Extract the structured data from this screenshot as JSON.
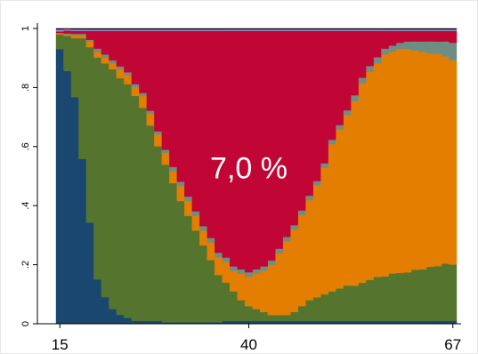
{
  "chart_data": {
    "type": "area",
    "stacking": "proportional",
    "step": true,
    "x": [
      15,
      16,
      17,
      18,
      19,
      20,
      21,
      22,
      23,
      24,
      25,
      26,
      27,
      28,
      29,
      30,
      31,
      32,
      33,
      34,
      35,
      36,
      37,
      38,
      39,
      40,
      41,
      42,
      43,
      44,
      45,
      46,
      47,
      48,
      49,
      50,
      51,
      52,
      53,
      54,
      55,
      56,
      57,
      58,
      59,
      60,
      61,
      62,
      63,
      64,
      65,
      66,
      67
    ],
    "series": [
      {
        "color": "#1a476f",
        "values": [
          0.93,
          0.86,
          0.77,
          0.56,
          0.34,
          0.15,
          0.09,
          0.05,
          0.03,
          0.02,
          0.01,
          0.01,
          0.01,
          0.01,
          0.005,
          0.005,
          0.005,
          0.005,
          0.005,
          0.005,
          0.005,
          0.005,
          0.01,
          0.01,
          0.01,
          0.01,
          0.01,
          0.01,
          0.01,
          0.01,
          0.01,
          0.01,
          0.01,
          0.01,
          0.01,
          0.01,
          0.01,
          0.01,
          0.01,
          0.01,
          0.01,
          0.01,
          0.01,
          0.01,
          0.01,
          0.01,
          0.01,
          0.01,
          0.01,
          0.01,
          0.01,
          0.01,
          0.01
        ]
      },
      {
        "color": "#55752f",
        "values": [
          0.05,
          0.12,
          0.2,
          0.41,
          0.59,
          0.75,
          0.79,
          0.81,
          0.8,
          0.79,
          0.76,
          0.72,
          0.66,
          0.59,
          0.53,
          0.47,
          0.41,
          0.36,
          0.31,
          0.26,
          0.21,
          0.16,
          0.13,
          0.1,
          0.07,
          0.05,
          0.04,
          0.03,
          0.02,
          0.02,
          0.02,
          0.03,
          0.05,
          0.07,
          0.08,
          0.09,
          0.1,
          0.11,
          0.12,
          0.12,
          0.13,
          0.14,
          0.15,
          0.15,
          0.16,
          0.16,
          0.16,
          0.17,
          0.17,
          0.18,
          0.18,
          0.19,
          0.19
        ]
      },
      {
        "color": "#e37e00",
        "values": [
          0.003,
          0.005,
          0.01,
          0.01,
          0.02,
          0.02,
          0.02,
          0.02,
          0.03,
          0.03,
          0.03,
          0.04,
          0.04,
          0.04,
          0.04,
          0.04,
          0.05,
          0.05,
          0.05,
          0.05,
          0.06,
          0.06,
          0.07,
          0.07,
          0.09,
          0.1,
          0.12,
          0.14,
          0.17,
          0.21,
          0.25,
          0.28,
          0.31,
          0.34,
          0.38,
          0.43,
          0.5,
          0.54,
          0.58,
          0.63,
          0.68,
          0.71,
          0.73,
          0.75,
          0.75,
          0.75,
          0.74,
          0.73,
          0.72,
          0.71,
          0.7,
          0.69,
          0.69
        ]
      },
      {
        "color": "#6e8e84",
        "values": [
          0.002,
          0.003,
          0.005,
          0.005,
          0.005,
          0.01,
          0.01,
          0.01,
          0.01,
          0.01,
          0.01,
          0.01,
          0.01,
          0.01,
          0.01,
          0.015,
          0.015,
          0.015,
          0.015,
          0.015,
          0.015,
          0.015,
          0.015,
          0.015,
          0.015,
          0.015,
          0.015,
          0.015,
          0.015,
          0.015,
          0.015,
          0.015,
          0.015,
          0.015,
          0.015,
          0.015,
          0.015,
          0.015,
          0.015,
          0.02,
          0.02,
          0.02,
          0.02,
          0.02,
          0.02,
          0.02,
          0.025,
          0.03,
          0.035,
          0.04,
          0.04,
          0.05,
          0.06
        ]
      },
      {
        "color": "#c10534",
        "values": [
          0.005,
          0.01,
          0.01,
          0.01,
          0.03,
          0.06,
          0.08,
          0.1,
          0.12,
          0.14,
          0.18,
          0.21,
          0.27,
          0.34,
          0.4,
          0.46,
          0.51,
          0.56,
          0.61,
          0.66,
          0.7,
          0.75,
          0.77,
          0.8,
          0.81,
          0.82,
          0.81,
          0.8,
          0.78,
          0.74,
          0.7,
          0.66,
          0.61,
          0.56,
          0.51,
          0.45,
          0.37,
          0.32,
          0.27,
          0.22,
          0.16,
          0.12,
          0.09,
          0.06,
          0.05,
          0.04,
          0.035,
          0.035,
          0.035,
          0.035,
          0.035,
          0.035,
          0.04
        ]
      },
      {
        "color": "#938dd2",
        "values": [
          0.007,
          0.005,
          0.005,
          0.005,
          0.005,
          0.005,
          0.005,
          0.005,
          0.005,
          0.005,
          0.005,
          0.005,
          0.005,
          0.005,
          0.005,
          0.005,
          0.005,
          0.005,
          0.005,
          0.005,
          0.005,
          0.005,
          0.005,
          0.005,
          0.005,
          0.005,
          0.005,
          0.005,
          0.005,
          0.005,
          0.005,
          0.005,
          0.005,
          0.005,
          0.005,
          0.005,
          0.005,
          0.005,
          0.005,
          0.005,
          0.005,
          0.005,
          0.005,
          0.005,
          0.005,
          0.005,
          0.005,
          0.005,
          0.005,
          0.005,
          0.005,
          0.005,
          0.005
        ]
      },
      {
        "color": "#000000",
        "values": [
          0.003,
          0.002,
          0.003,
          0.003,
          0.003,
          0.003,
          0.003,
          0.003,
          0.003,
          0.003,
          0.003,
          0.003,
          0.003,
          0.003,
          0.003,
          0.003,
          0.003,
          0.003,
          0.003,
          0.003,
          0.003,
          0.003,
          0.003,
          0.003,
          0.003,
          0.003,
          0.003,
          0.003,
          0.003,
          0.003,
          0.003,
          0.003,
          0.003,
          0.003,
          0.003,
          0.003,
          0.003,
          0.003,
          0.003,
          0.003,
          0.003,
          0.003,
          0.003,
          0.003,
          0.003,
          0.003,
          0.003,
          0.003,
          0.003,
          0.003,
          0.003,
          0.003,
          0.003
        ]
      }
    ],
    "y_ticks": [
      {
        "value": 0,
        "label": "0"
      },
      {
        "value": 0.2,
        "label": ".2"
      },
      {
        "value": 0.4,
        "label": ".4"
      },
      {
        "value": 0.6,
        "label": ".6"
      },
      {
        "value": 0.8,
        "label": ".8"
      },
      {
        "value": 1,
        "label": "1"
      }
    ],
    "x_ticks": [
      {
        "value": 15,
        "label": "15"
      },
      {
        "value": 40,
        "label": "40"
      },
      {
        "value": 67,
        "label": "67"
      }
    ],
    "ylim": [
      0,
      1
    ],
    "xlim": [
      15,
      67
    ],
    "grid": false,
    "annotation": {
      "text": "7,0 %",
      "x": 40,
      "y": 0.52
    }
  }
}
